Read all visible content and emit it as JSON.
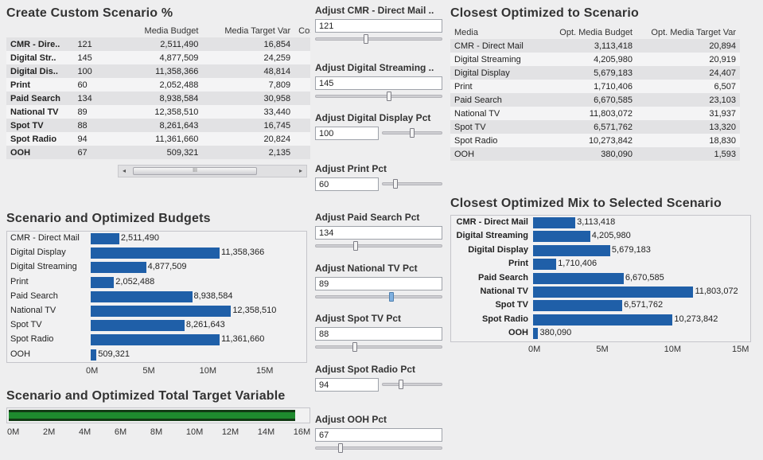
{
  "custom": {
    "title": "Create Custom Scenario %",
    "headers": [
      "",
      "",
      "Media Budget",
      "Media Target Var",
      "Cost I"
    ],
    "rows": [
      {
        "media": "CMR - Dire..",
        "pct": "121",
        "budget": "2,511,490",
        "target": "16,854"
      },
      {
        "media": "Digital Str..",
        "pct": "145",
        "budget": "4,877,509",
        "target": "24,259"
      },
      {
        "media": "Digital Dis..",
        "pct": "100",
        "budget": "11,358,366",
        "target": "48,814"
      },
      {
        "media": "Print",
        "pct": "60",
        "budget": "2,052,488",
        "target": "7,809"
      },
      {
        "media": "Paid Search",
        "pct": "134",
        "budget": "8,938,584",
        "target": "30,958"
      },
      {
        "media": "National TV",
        "pct": "89",
        "budget": "12,358,510",
        "target": "33,440"
      },
      {
        "media": "Spot TV",
        "pct": "88",
        "budget": "8,261,643",
        "target": "16,745"
      },
      {
        "media": "Spot Radio",
        "pct": "94",
        "budget": "11,361,660",
        "target": "20,824"
      },
      {
        "media": "OOH",
        "pct": "67",
        "budget": "509,321",
        "target": "2,135"
      }
    ],
    "scroll_left": "◂",
    "scroll_right": "▸",
    "scroll_grip": "III"
  },
  "params": [
    {
      "label": "Adjust CMR - Direct Mail ..",
      "value": "121",
      "pos": 0.4
    },
    {
      "label": "Adjust Digital Streaming ..",
      "value": "145",
      "pos": 0.58
    },
    {
      "label": "Adjust Digital Display Pct",
      "value": "100",
      "pos": 0.5
    },
    {
      "label": "Adjust Print Pct",
      "value": "60",
      "pos": 0.22
    },
    {
      "label": "Adjust Paid Search Pct",
      "value": "134",
      "pos": 0.32
    },
    {
      "label": "Adjust National TV Pct",
      "value": "89",
      "pos": 0.6
    },
    {
      "label": "Adjust Spot TV Pct",
      "value": "88",
      "pos": 0.31
    },
    {
      "label": "Adjust Spot Radio Pct",
      "value": "94",
      "pos": 0.31
    },
    {
      "label": "Adjust OOH Pct",
      "value": "67",
      "pos": 0.2
    }
  ],
  "closest": {
    "title": "Closest Optimized to Scenario",
    "headers": [
      "Media",
      "Opt. Media Budget",
      "Opt. Media Target Var"
    ],
    "rows": [
      {
        "media": "CMR - Direct Mail",
        "budget": "3,113,418",
        "target": "20,894"
      },
      {
        "media": "Digital Streaming",
        "budget": "4,205,980",
        "target": "20,919"
      },
      {
        "media": "Digital Display",
        "budget": "5,679,183",
        "target": "24,407"
      },
      {
        "media": "Print",
        "budget": "1,710,406",
        "target": "6,507"
      },
      {
        "media": "Paid Search",
        "budget": "6,670,585",
        "target": "23,103"
      },
      {
        "media": "National TV",
        "budget": "11,803,072",
        "target": "31,937"
      },
      {
        "media": "Spot TV",
        "budget": "6,571,762",
        "target": "13,320"
      },
      {
        "media": "Spot Radio",
        "budget": "10,273,842",
        "target": "18,830"
      },
      {
        "media": "OOH",
        "budget": "380,090",
        "target": "1,593"
      }
    ]
  },
  "chart_data": [
    {
      "type": "bar",
      "title": "Scenario and Optimized Budgets",
      "categories": [
        "CMR - Direct Mail",
        "Digital Display",
        "Digital Streaming",
        "Print",
        "Paid Search",
        "National TV",
        "Spot TV",
        "Spot Radio",
        "OOH"
      ],
      "values": [
        2511490,
        11358366,
        4877509,
        2052488,
        8938584,
        12358510,
        8261643,
        11361660,
        509321
      ],
      "labels": [
        "2,511,490",
        "11,358,366",
        "4,877,509",
        "2,052,488",
        "8,938,584",
        "12,358,510",
        "8,261,643",
        "11,361,660",
        "509,321"
      ],
      "xlim": [
        0,
        15000000
      ],
      "ticks": [
        "0M",
        "5M",
        "10M",
        "15M"
      ],
      "color": "#1f5fa8"
    },
    {
      "type": "bar",
      "title": "Closest Optimized Mix to Selected Scenario",
      "categories": [
        "CMR - Direct Mail",
        "Digital Streaming",
        "Digital Display",
        "Print",
        "Paid Search",
        "National TV",
        "Spot TV",
        "Spot Radio",
        "OOH"
      ],
      "values": [
        3113418,
        4205980,
        5679183,
        1710406,
        6670585,
        11803072,
        6571762,
        10273842,
        380090
      ],
      "labels": [
        "3,113,418",
        "4,205,980",
        "5,679,183",
        "1,710,406",
        "6,670,585",
        "11,803,072",
        "6,571,762",
        "10,273,842",
        "380,090"
      ],
      "xlim": [
        0,
        15000000
      ],
      "ticks": [
        "0M",
        "5M",
        "10M",
        "15M"
      ],
      "color": "#1f5fa8"
    },
    {
      "type": "bar",
      "title": "Scenario and Optimized Total Target Variable",
      "values": [
        16000000
      ],
      "xlim": [
        0,
        16500000
      ],
      "ticks": [
        "0M",
        "2M",
        "4M",
        "6M",
        "8M",
        "10M",
        "12M",
        "14M",
        "16M"
      ],
      "color": "#1e8a2e"
    }
  ]
}
